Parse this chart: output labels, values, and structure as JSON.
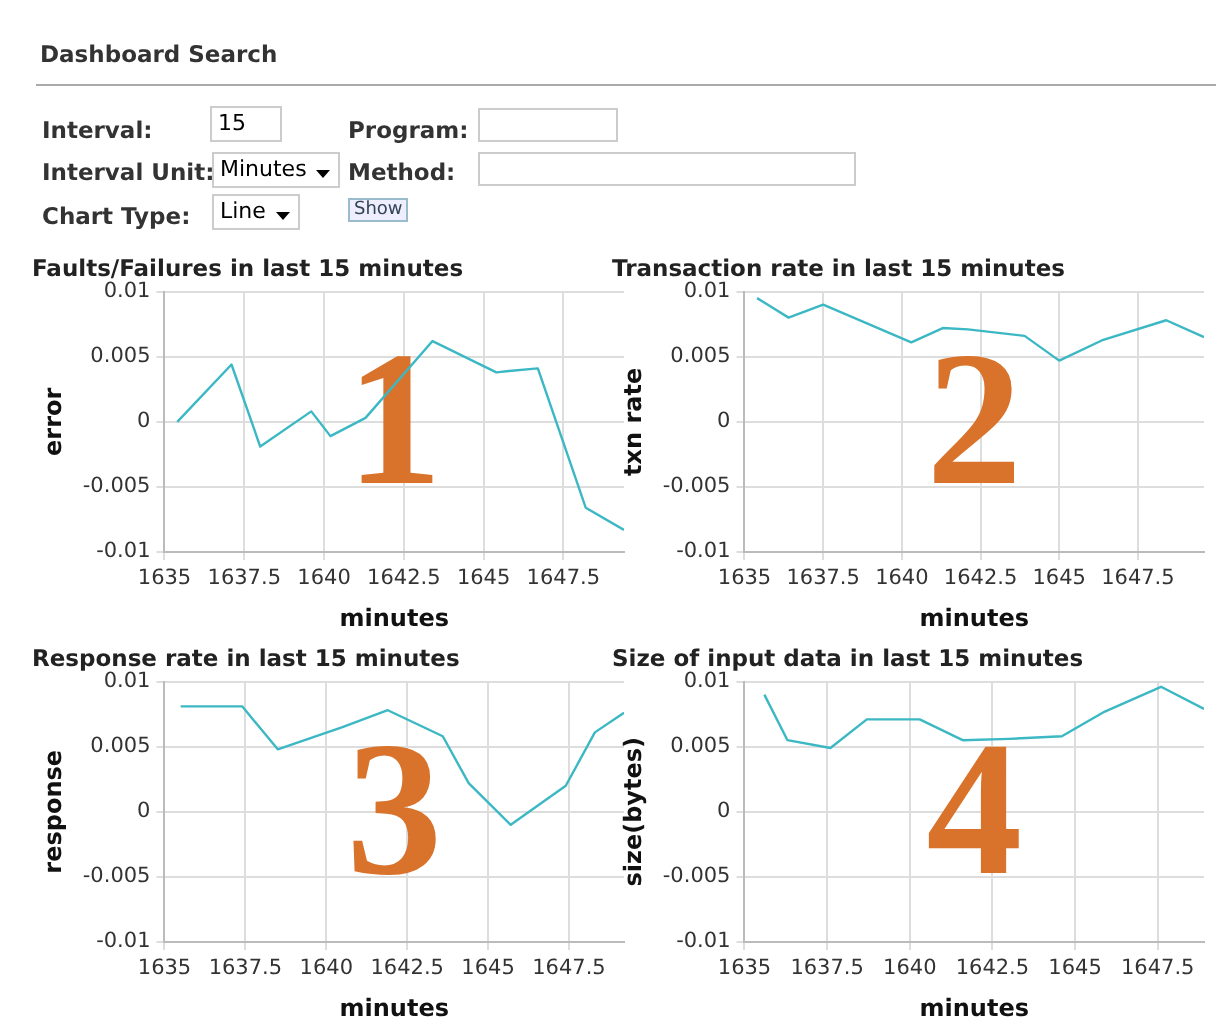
{
  "chart_data": [
    {
      "type": "other",
      "title": "Dashboard Search",
      "annotations": [
        "Interval:",
        "15",
        "Program:",
        "Interval Unit:",
        "Minutes",
        "Method:",
        "Chart Type:",
        "Line",
        "Show"
      ]
    },
    {
      "type": "line",
      "title": "Faults/Failures in last 15 minutes",
      "xlabel": "minutes",
      "ylabel": "error",
      "annotations": [
        "1"
      ],
      "xlim": [
        1635,
        1649.4
      ],
      "xticks": [
        1635,
        1637.5,
        1640,
        1642.5,
        1645,
        1647.5
      ],
      "ylim": [
        -0.01,
        0.01
      ],
      "yticks": [
        -0.01,
        -0.005,
        0,
        0.005,
        0.01
      ],
      "grid": true,
      "legend": false,
      "marker": "none",
      "line_style": "solid",
      "series": [
        {
          "color": "#3bb8c4",
          "x": [
            1635.4,
            1637.1,
            1638.0,
            1639.6,
            1640.2,
            1641.3,
            1643.4,
            1645.4,
            1645.8,
            1646.7,
            1648.2,
            1649.4
          ],
          "values": [
            0,
            0.0044,
            -0.0019,
            0.0008,
            -0.0011,
            0.0003,
            0.0062,
            0.0038,
            0.0039,
            0.0041,
            -0.0066,
            -0.0083
          ]
        }
      ]
    },
    {
      "type": "line",
      "title": "Transaction rate in last 15 minutes",
      "xlabel": "minutes",
      "ylabel": "txn rate",
      "annotations": [
        "2"
      ],
      "xlim": [
        1635,
        1649.6
      ],
      "xticks": [
        1635,
        1637.5,
        1640,
        1642.5,
        1645,
        1647.5
      ],
      "ylim": [
        -0.01,
        0.01
      ],
      "yticks": [
        -0.01,
        -0.005,
        0,
        0.005,
        0.01
      ],
      "grid": true,
      "legend": false,
      "marker": "none",
      "line_style": "solid",
      "series": [
        {
          "color": "#3bb8c4",
          "x": [
            1635.4,
            1636.4,
            1637.5,
            1640.3,
            1641.3,
            1642.1,
            1643.9,
            1645.0,
            1646.4,
            1648.4,
            1649.6
          ],
          "values": [
            0.0095,
            0.008,
            0.009,
            0.0061,
            0.0072,
            0.0071,
            0.0066,
            0.0047,
            0.0063,
            0.0078,
            0.0065
          ]
        }
      ]
    },
    {
      "type": "line",
      "title": "Response rate in last 15 minutes",
      "xlabel": "minutes",
      "ylabel": "response",
      "annotations": [
        "3"
      ],
      "xlim": [
        1635,
        1649.2
      ],
      "xticks": [
        1635,
        1637.5,
        1640,
        1642.5,
        1645,
        1647.5
      ],
      "ylim": [
        -0.01,
        0.01
      ],
      "yticks": [
        -0.01,
        -0.005,
        0,
        0.005,
        0.01
      ],
      "grid": true,
      "legend": false,
      "marker": "none",
      "line_style": "solid",
      "series": [
        {
          "color": "#3bb8c4",
          "x": [
            1635.5,
            1637.4,
            1638.5,
            1640.5,
            1641.9,
            1643.6,
            1644.4,
            1645.7,
            1647.4,
            1648.3,
            1649.2
          ],
          "values": [
            0.0081,
            0.0081,
            0.0048,
            0.0065,
            0.0078,
            0.0058,
            0.0022,
            -0.001,
            0.002,
            0.0061,
            0.0076
          ]
        }
      ]
    },
    {
      "type": "line",
      "title": "Size of input data in last 15 minutes",
      "xlabel": "minutes",
      "ylabel": "size(bytes)",
      "annotations": [
        "4"
      ],
      "xlim": [
        1635,
        1648.9
      ],
      "xticks": [
        1635,
        1637.5,
        1640,
        1642.5,
        1645,
        1647.5
      ],
      "ylim": [
        -0.01,
        0.01
      ],
      "yticks": [
        -0.01,
        -0.005,
        0,
        0.005,
        0.01
      ],
      "grid": true,
      "legend": false,
      "marker": "none",
      "line_style": "solid",
      "series": [
        {
          "color": "#3bb8c4",
          "x": [
            1635.6,
            1636.3,
            1637.6,
            1638.7,
            1640.3,
            1641.6,
            1643.0,
            1644.6,
            1645.9,
            1647.6,
            1648.9
          ],
          "values": [
            0.009,
            0.0055,
            0.0049,
            0.0071,
            0.0071,
            0.0055,
            0.0056,
            0.0058,
            0.0077,
            0.0096,
            0.0079
          ]
        }
      ]
    }
  ]
}
